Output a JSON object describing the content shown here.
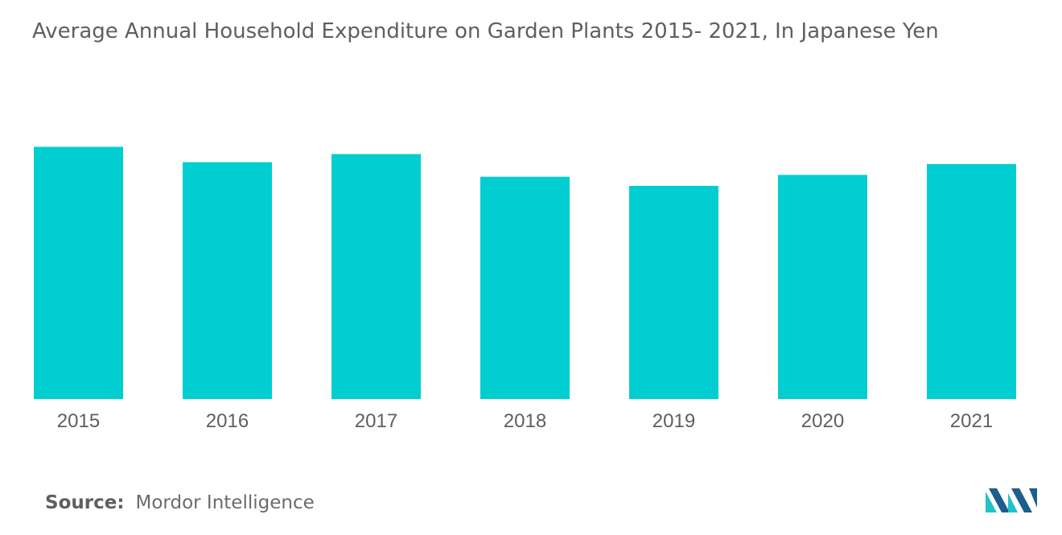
{
  "title": "Average Annual Household Expenditure on Garden Plants 2015- 2021, In Japanese Yen",
  "source": {
    "label": "Source:",
    "value": "Mordor Intelligence"
  },
  "colors": {
    "bar": "#00ced1",
    "text": "#5f5f5f",
    "logo_dark": "#1d5f8c",
    "logo_light": "#21c3c9"
  },
  "chart_data": {
    "type": "bar",
    "title": "Average Annual Household Expenditure on Garden Plants 2015- 2021, In Japanese Yen",
    "xlabel": "",
    "ylabel": "",
    "categories": [
      "2015",
      "2016",
      "2017",
      "2018",
      "2019",
      "2020",
      "2021"
    ],
    "values": [
      1390,
      1305,
      1350,
      1225,
      1175,
      1235,
      1295
    ],
    "ylim": [
      0,
      1800
    ],
    "grid": false,
    "legend": "none"
  }
}
